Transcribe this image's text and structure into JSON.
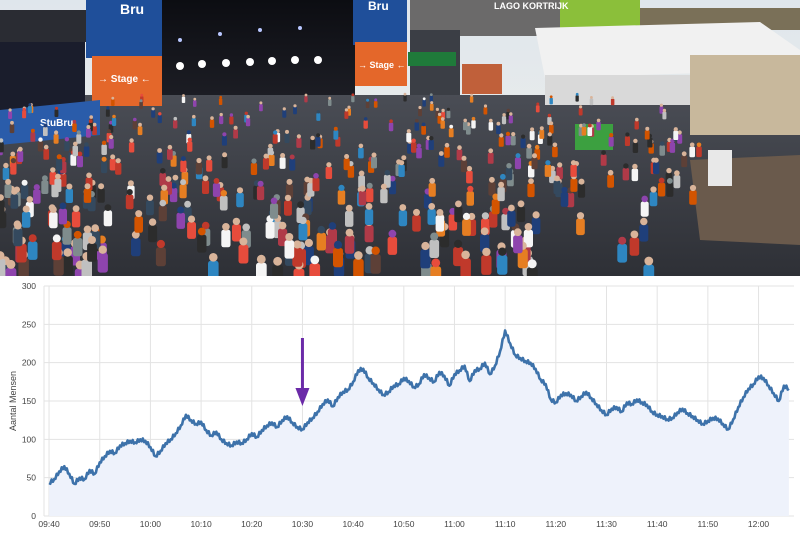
{
  "photo": {
    "description_labels": {
      "stage_sign_left_brand": "Bru",
      "stage_sign_left_text": "→ Stage ←",
      "stage_sign_right_brand": "Bru",
      "stage_sign_right_text": "→ Stage ←",
      "banner_brand": "StuBru",
      "venue_sign": "LAGO KORTRIJK"
    },
    "colors": {
      "sky": "#e8eef2",
      "stage_blue": "#1f4f9a",
      "stage_orange": "#e4672a",
      "ground": "#3a3c44"
    }
  },
  "chart_data": {
    "type": "area",
    "title": "",
    "xlabel": "",
    "ylabel": "Aantal Mensen",
    "ylim": [
      0,
      300
    ],
    "yticks": [
      0,
      50,
      100,
      150,
      200,
      250,
      300
    ],
    "xlim": [
      "09:39",
      "12:07"
    ],
    "xticks": [
      "09:40",
      "09:50",
      "10:00",
      "10:10",
      "10:20",
      "10:30",
      "10:40",
      "10:50",
      "11:00",
      "11:10",
      "11:20",
      "11:30",
      "11:40",
      "11:50",
      "12:00"
    ],
    "grid": true,
    "line_color": "#3d72aa",
    "fill_color": "#eef2fb",
    "arrow_color": "#6b2aa8",
    "annotation": {
      "type": "arrow",
      "time": "10:30"
    },
    "series": [
      {
        "x": [
          "09:40",
          "09:41",
          "09:42",
          "09:43",
          "09:44",
          "09:45",
          "09:46",
          "09:47",
          "09:48",
          "09:49",
          "09:50",
          "09:51",
          "09:52",
          "09:53",
          "09:54",
          "09:55",
          "09:56",
          "09:57",
          "09:58",
          "09:59",
          "10:00",
          "10:01",
          "10:02",
          "10:03",
          "10:04",
          "10:05",
          "10:06",
          "10:07",
          "10:08",
          "10:09",
          "10:10",
          "10:11",
          "10:12",
          "10:13",
          "10:14",
          "10:15",
          "10:16",
          "10:17",
          "10:18",
          "10:19",
          "10:20",
          "10:21",
          "10:22",
          "10:23",
          "10:24",
          "10:25",
          "10:26",
          "10:27",
          "10:28",
          "10:29",
          "10:30",
          "10:31",
          "10:32",
          "10:33",
          "10:34",
          "10:35",
          "10:36",
          "10:37",
          "10:38",
          "10:39",
          "10:40",
          "10:41",
          "10:42",
          "10:43",
          "10:44",
          "10:45",
          "10:46",
          "10:47",
          "10:48",
          "10:49",
          "10:50",
          "10:51",
          "10:52",
          "10:53",
          "10:54",
          "10:55",
          "10:56",
          "10:57",
          "10:58",
          "10:59",
          "11:00",
          "11:01",
          "11:02",
          "11:03",
          "11:04",
          "11:05",
          "11:06",
          "11:07",
          "11:08",
          "11:09",
          "11:10",
          "11:11",
          "11:12",
          "11:13",
          "11:14",
          "11:15",
          "11:16",
          "11:17",
          "11:18",
          "11:19",
          "11:20",
          "11:21",
          "11:22",
          "11:23",
          "11:24",
          "11:25",
          "11:26",
          "11:27",
          "11:28",
          "11:29",
          "11:30",
          "11:31",
          "11:32",
          "11:33",
          "11:34",
          "11:35",
          "11:36",
          "11:37",
          "11:38",
          "11:39",
          "11:40",
          "11:41",
          "11:42",
          "11:43",
          "11:44",
          "11:45",
          "11:46",
          "11:47",
          "11:48",
          "11:49",
          "11:50",
          "11:51",
          "11:52",
          "11:53",
          "11:54",
          "11:55",
          "11:56",
          "11:57",
          "11:58",
          "11:59",
          "12:00",
          "12:01",
          "12:02",
          "12:03",
          "12:04",
          "12:05",
          "12:06"
        ],
        "y": [
          43,
          48,
          58,
          65,
          55,
          42,
          50,
          48,
          60,
          55,
          70,
          78,
          85,
          82,
          92,
          95,
          98,
          96,
          100,
          98,
          90,
          78,
          85,
          95,
          100,
          108,
          118,
          132,
          125,
          120,
          123,
          112,
          105,
          110,
          100,
          95,
          92,
          97,
          95,
          100,
          108,
          103,
          112,
          118,
          122,
          116,
          125,
          130,
          122,
          116,
          113,
          122,
          128,
          136,
          146,
          152,
          143,
          155,
          162,
          165,
          175,
          190,
          192,
          180,
          173,
          165,
          158,
          162,
          170,
          172,
          180,
          176,
          168,
          172,
          185,
          180,
          175,
          188,
          183,
          170,
          185,
          190,
          196,
          176,
          190,
          192,
          200,
          185,
          196,
          215,
          242,
          225,
          210,
          206,
          202,
          200,
          192,
          178,
          172,
          152,
          148,
          158,
          160,
          158,
          150,
          156,
          162,
          154,
          146,
          138,
          132,
          140,
          142,
          136,
          148,
          146,
          152,
          148,
          145,
          136,
          132,
          130,
          126,
          128,
          135,
          140,
          134,
          130,
          125,
          120,
          124,
          128,
          127,
          120,
          113,
          126,
          142,
          155,
          166,
          172,
          182,
          180,
          170,
          160,
          150,
          170,
          166
        ]
      }
    ]
  }
}
